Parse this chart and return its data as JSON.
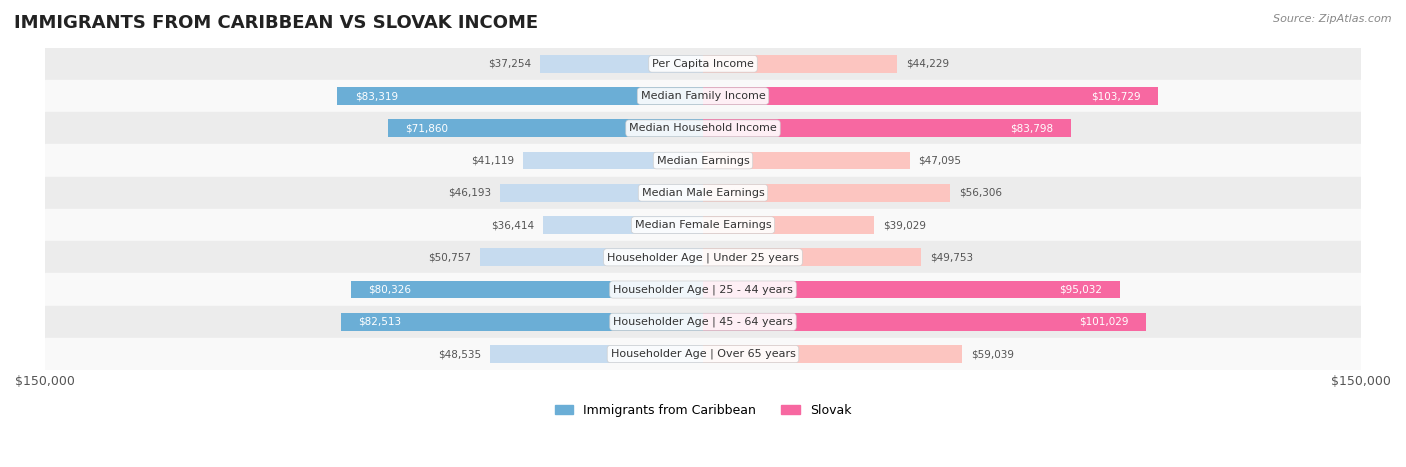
{
  "title": "IMMIGRANTS FROM CARIBBEAN VS SLOVAK INCOME",
  "source": "Source: ZipAtlas.com",
  "categories": [
    "Per Capita Income",
    "Median Family Income",
    "Median Household Income",
    "Median Earnings",
    "Median Male Earnings",
    "Median Female Earnings",
    "Householder Age | Under 25 years",
    "Householder Age | 25 - 44 years",
    "Householder Age | 45 - 64 years",
    "Householder Age | Over 65 years"
  ],
  "caribbean_values": [
    37254,
    83319,
    71860,
    41119,
    46193,
    36414,
    50757,
    80326,
    82513,
    48535
  ],
  "slovak_values": [
    44229,
    103729,
    83798,
    47095,
    56306,
    39029,
    49753,
    95032,
    101029,
    59039
  ],
  "caribbean_color_strong": "#6baed6",
  "caribbean_color_light": "#c6dbef",
  "slovak_color_strong": "#f768a1",
  "slovak_color_light": "#fcc5c0",
  "xlim": 150000,
  "bar_height": 0.55,
  "background_color": "#f5f5f5",
  "row_color_dark": "#ececec",
  "row_color_light": "#f9f9f9",
  "legend_label_caribbean": "Immigrants from Caribbean",
  "legend_label_slovak": "Slovak"
}
